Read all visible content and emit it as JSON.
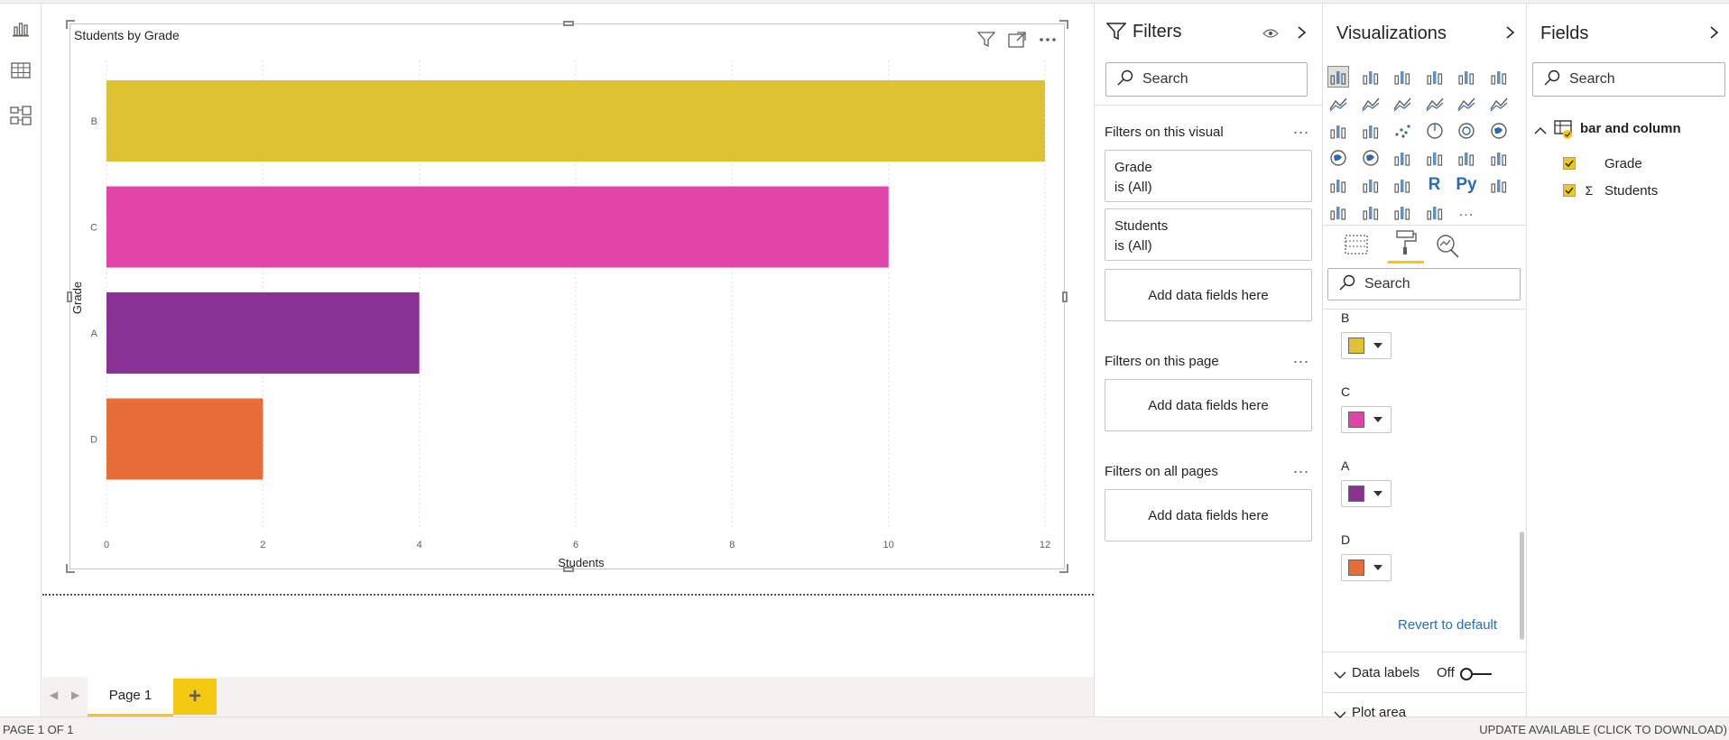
{
  "nav": {
    "report_icon": "report-view-icon",
    "data_icon": "data-view-icon",
    "model_icon": "model-view-icon"
  },
  "visual": {
    "title": "Students by Grade"
  },
  "chart_data": {
    "type": "bar",
    "orientation": "horizontal",
    "title": "Students by Grade",
    "categories": [
      "B",
      "C",
      "A",
      "D"
    ],
    "values": [
      12,
      10,
      4,
      2
    ],
    "colors": [
      "#DFC232",
      "#E044A7",
      "#883294",
      "#E76C37"
    ],
    "xlabel": "Students",
    "ylabel": "Grade",
    "xlim": [
      0,
      12
    ],
    "xticks": [
      0,
      2,
      4,
      6,
      8,
      10,
      12
    ]
  },
  "pages": {
    "current": "Page 1",
    "add_label": "+"
  },
  "status": {
    "left": "PAGE 1 OF 1",
    "right": "UPDATE AVAILABLE (CLICK TO DOWNLOAD)"
  },
  "filters": {
    "title": "Filters",
    "search_placeholder": "Search",
    "on_visual": "Filters on this visual",
    "card1_name": "Grade",
    "card1_value": "is (All)",
    "card2_name": "Students",
    "card2_value": "is (All)",
    "add_fields": "Add data fields here",
    "on_page": "Filters on this page",
    "on_all": "Filters on all pages",
    "dots": "..."
  },
  "viz": {
    "title": "Visualizations",
    "search_placeholder": "Search",
    "colors": [
      {
        "label": "B",
        "color": "#DFC232"
      },
      {
        "label": "C",
        "color": "#E044A7"
      },
      {
        "label": "A",
        "color": "#883294"
      },
      {
        "label": "D",
        "color": "#E76C37"
      }
    ],
    "revert": "Revert to default",
    "data_labels": "Data labels",
    "data_labels_state": "Off",
    "plot_area": "Plot area",
    "r_label": "R",
    "py_label": "Py",
    "more": "..."
  },
  "fields": {
    "title": "Fields",
    "search_placeholder": "Search",
    "table": "bar and column",
    "items": [
      {
        "name": "Grade",
        "sigma": ""
      },
      {
        "name": "Students",
        "sigma": "Σ"
      }
    ],
    "accent": "#F2C811"
  }
}
